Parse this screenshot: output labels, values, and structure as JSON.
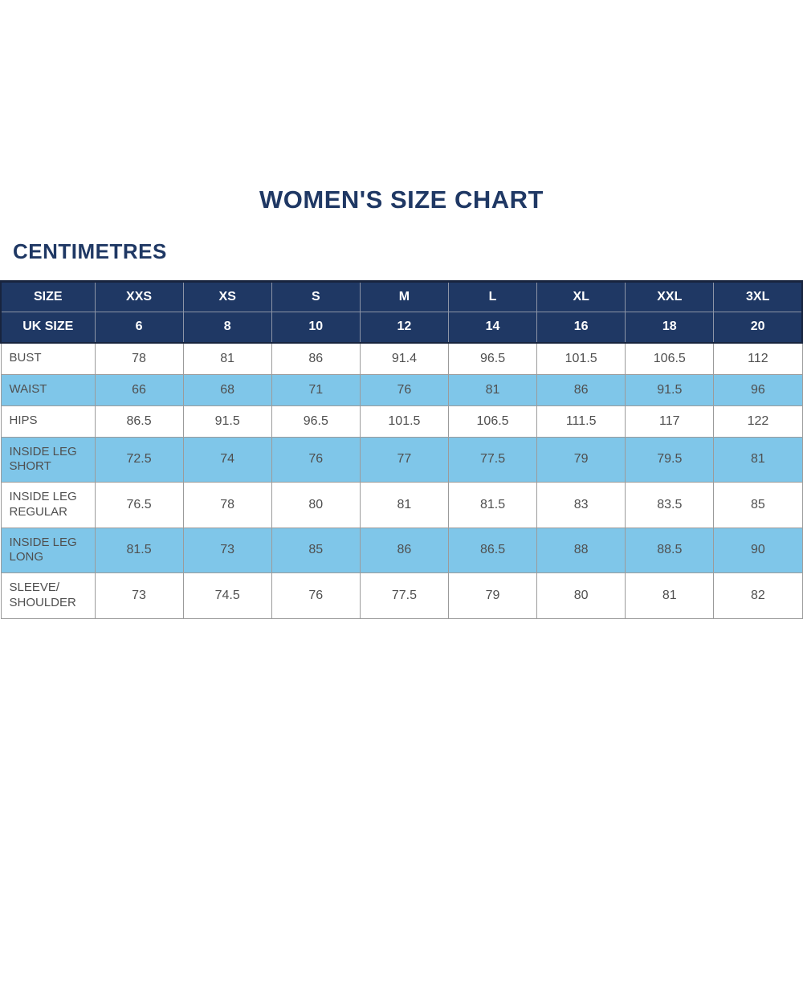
{
  "page": {
    "title": "WOMEN'S SIZE CHART",
    "unit_label": "CENTIMETRES"
  },
  "colors": {
    "header_navy": "#1F3864",
    "title_navy": "#1F3864",
    "row_blue": "#7FC6E9",
    "body_text": "#4F4F4F",
    "body_border": "#9B9B9B",
    "header_separator": "#8C94A6",
    "header_outline": "#18243E"
  },
  "chart_data": {
    "type": "table",
    "title": "WOMEN'S SIZE CHART",
    "unit": "CENTIMETRES",
    "header_rows": [
      {
        "label": "SIZE",
        "values": [
          "XXS",
          "XS",
          "S",
          "M",
          "L",
          "XL",
          "XXL",
          "3XL"
        ]
      },
      {
        "label": "UK SIZE",
        "values": [
          "6",
          "8",
          "10",
          "12",
          "14",
          "16",
          "18",
          "20"
        ]
      }
    ],
    "rows": [
      {
        "label": "BUST",
        "shaded": false,
        "values": [
          "78",
          "81",
          "86",
          "91.4",
          "96.5",
          "101.5",
          "106.5",
          "112"
        ]
      },
      {
        "label": "WAIST",
        "shaded": true,
        "values": [
          "66",
          "68",
          "71",
          "76",
          "81",
          "86",
          "91.5",
          "96"
        ]
      },
      {
        "label": "HIPS",
        "shaded": false,
        "values": [
          "86.5",
          "91.5",
          "96.5",
          "101.5",
          "106.5",
          "111.5",
          "117",
          "122"
        ]
      },
      {
        "label": "INSIDE LEG SHORT",
        "shaded": true,
        "values": [
          "72.5",
          "74",
          "76",
          "77",
          "77.5",
          "79",
          "79.5",
          "81"
        ]
      },
      {
        "label": "INSIDE LEG REGULAR",
        "shaded": false,
        "values": [
          "76.5",
          "78",
          "80",
          "81",
          "81.5",
          "83",
          "83.5",
          "85"
        ]
      },
      {
        "label": "INSIDE LEG LONG",
        "shaded": true,
        "values": [
          "81.5",
          "73",
          "85",
          "86",
          "86.5",
          "88",
          "88.5",
          "90"
        ]
      },
      {
        "label": "SLEEVE/ SHOULDER",
        "shaded": false,
        "values": [
          "73",
          "74.5",
          "76",
          "77.5",
          "79",
          "80",
          "81",
          "82"
        ]
      }
    ]
  }
}
